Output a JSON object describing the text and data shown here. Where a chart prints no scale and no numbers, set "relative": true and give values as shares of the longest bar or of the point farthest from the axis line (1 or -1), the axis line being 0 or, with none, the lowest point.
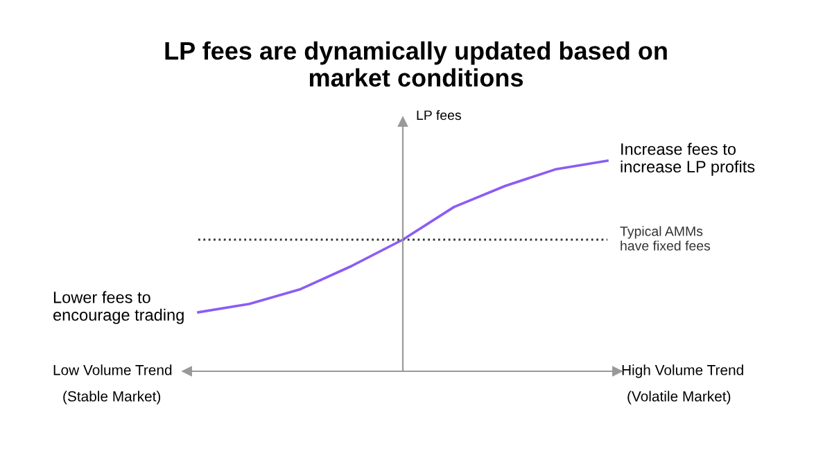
{
  "chart_data": {
    "type": "line",
    "title": "LP fees are dynamically updated based on\nmarket conditions",
    "ylabel": "LP fees",
    "relative": true,
    "categories": [
      null,
      null,
      null,
      null,
      null,
      null,
      null,
      null,
      null
    ],
    "series": [
      {
        "color": "#8b5cf6",
        "values": [
          0.28,
          0.32,
          0.39,
          0.5,
          0.625,
          0.78,
          0.88,
          0.96,
          1.0
        ]
      }
    ],
    "ref_lines": [
      {
        "axis": "y",
        "value": 0.625,
        "label": "Typical AMMs\nhave fixed fees",
        "color": "#333333",
        "line_style": "dotted"
      }
    ],
    "annotations": [
      "Increase fees to\nincrease LP profits",
      "Lower fees to\nencourage trading",
      "Low Volume Trend",
      "(Stable Market)",
      "High Volume Trend",
      "(Volatile Market)"
    ],
    "legend": false
  }
}
